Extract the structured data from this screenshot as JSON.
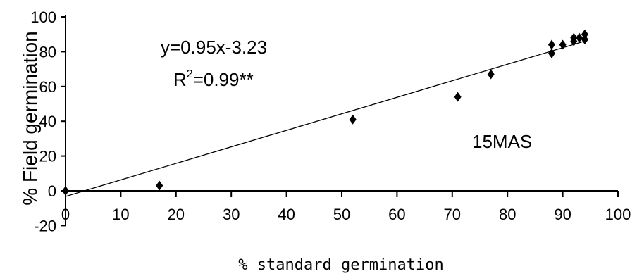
{
  "chart_data": {
    "type": "scatter",
    "title": "",
    "xlabel": "% standard germination",
    "ylabel": "% Field germination",
    "xlim": [
      0,
      100
    ],
    "ylim": [
      -20,
      100
    ],
    "x_ticks": [
      "0",
      "10",
      "20",
      "30",
      "40",
      "50",
      "60",
      "70",
      "80",
      "90",
      "100"
    ],
    "y_ticks": [
      "-20",
      "0",
      "20",
      "40",
      "60",
      "80",
      "100"
    ],
    "grid": false,
    "marker": "diamond",
    "colors": {
      "points": "#000000",
      "line": "#000000",
      "axis": "#000000"
    },
    "points": [
      {
        "x": 0,
        "y": 0
      },
      {
        "x": 17,
        "y": 3
      },
      {
        "x": 52,
        "y": 41
      },
      {
        "x": 71,
        "y": 54
      },
      {
        "x": 77,
        "y": 67
      },
      {
        "x": 88,
        "y": 79
      },
      {
        "x": 88,
        "y": 84
      },
      {
        "x": 90,
        "y": 84
      },
      {
        "x": 92,
        "y": 86
      },
      {
        "x": 92,
        "y": 88
      },
      {
        "x": 93,
        "y": 88
      },
      {
        "x": 94,
        "y": 87
      },
      {
        "x": 94,
        "y": 90
      }
    ],
    "trendline": {
      "slope": 0.95,
      "intercept": -3.23,
      "x_range": [
        0,
        94
      ]
    },
    "annotations": {
      "equation": "y=0.95x-3.23",
      "r2_prefix": "R",
      "r2_sup": "2",
      "r2_value": "=0.99**",
      "label": "15MAS"
    }
  }
}
